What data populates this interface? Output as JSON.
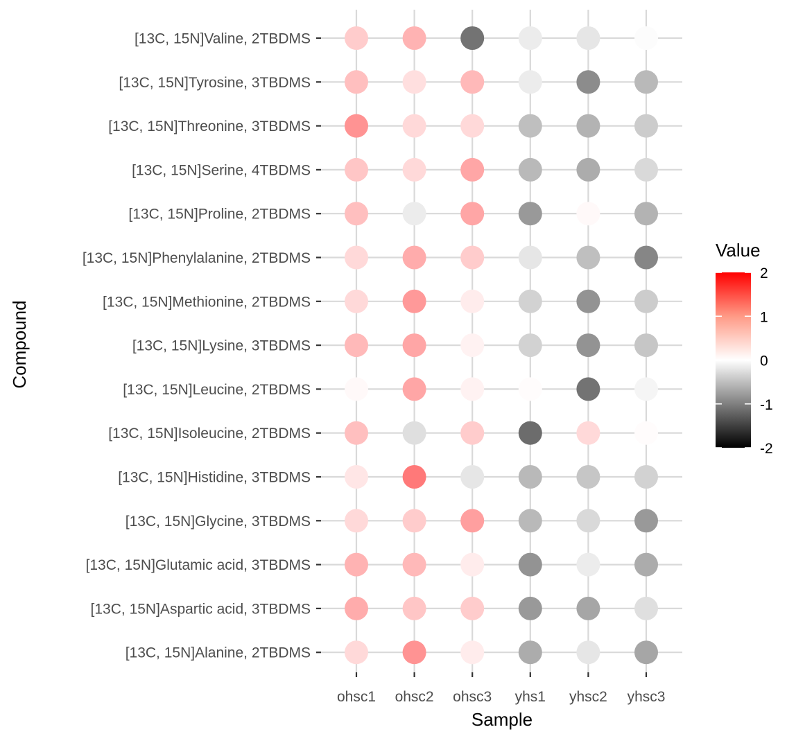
{
  "chart_data": {
    "type": "heatmap",
    "subtype": "dot-matrix",
    "title": "",
    "xlabel": "Sample",
    "ylabel": "Compound",
    "x": [
      "ohsc1",
      "ohsc2",
      "ohsc3",
      "yhs1",
      "yhsc2",
      "yhsc3"
    ],
    "y": [
      "[13C, 15N]Valine, 2TBDMS",
      "[13C, 15N]Tyrosine, 3TBDMS",
      "[13C, 15N]Threonine, 3TBDMS",
      "[13C, 15N]Serine, 4TBDMS",
      "[13C, 15N]Proline, 2TBDMS",
      "[13C, 15N]Phenylalanine, 2TBDMS",
      "[13C, 15N]Methionine, 2TBDMS",
      "[13C, 15N]Lysine, 3TBDMS",
      "[13C, 15N]Leucine, 2TBDMS",
      "[13C, 15N]Isoleucine, 2TBDMS",
      "[13C, 15N]Histidine, 3TBDMS",
      "[13C, 15N]Glycine, 3TBDMS",
      "[13C, 15N]Glutamic acid, 3TBDMS",
      "[13C, 15N]Aspartic acid, 3TBDMS",
      "[13C, 15N]Alanine, 2TBDMS"
    ],
    "values": [
      [
        0.4,
        0.6,
        -1.1,
        -0.15,
        -0.2,
        -0.02
      ],
      [
        0.5,
        0.25,
        0.55,
        -0.15,
        -0.9,
        -0.55
      ],
      [
        0.85,
        0.3,
        0.3,
        -0.5,
        -0.6,
        -0.4
      ],
      [
        0.45,
        0.3,
        0.7,
        -0.55,
        -0.65,
        -0.3
      ],
      [
        0.5,
        -0.15,
        0.7,
        -0.8,
        0.05,
        -0.6
      ],
      [
        0.3,
        0.65,
        0.4,
        -0.2,
        -0.5,
        -0.95
      ],
      [
        0.3,
        0.8,
        0.15,
        -0.35,
        -0.85,
        -0.4
      ],
      [
        0.55,
        0.7,
        0.1,
        -0.35,
        -0.85,
        -0.45
      ],
      [
        0.05,
        0.7,
        0.1,
        0.02,
        -1.1,
        -0.08
      ],
      [
        0.5,
        -0.25,
        0.4,
        -1.15,
        0.3,
        0.02
      ],
      [
        0.2,
        1.05,
        -0.2,
        -0.55,
        -0.45,
        -0.35
      ],
      [
        0.3,
        0.4,
        0.75,
        -0.55,
        -0.3,
        -0.8
      ],
      [
        0.6,
        0.55,
        0.15,
        -0.85,
        -0.15,
        -0.65
      ],
      [
        0.65,
        0.45,
        0.4,
        -0.8,
        -0.7,
        -0.25
      ],
      [
        0.3,
        0.85,
        0.15,
        -0.65,
        -0.2,
        -0.7
      ]
    ],
    "color_scale": {
      "name": "Value",
      "min": -2,
      "max": 2,
      "ticks": [
        2,
        1,
        0,
        -1,
        -2
      ],
      "low_color": "#000000",
      "mid_color": "#ffffff",
      "high_color": "#ff0000"
    },
    "grid": true,
    "legend_position": "right"
  }
}
